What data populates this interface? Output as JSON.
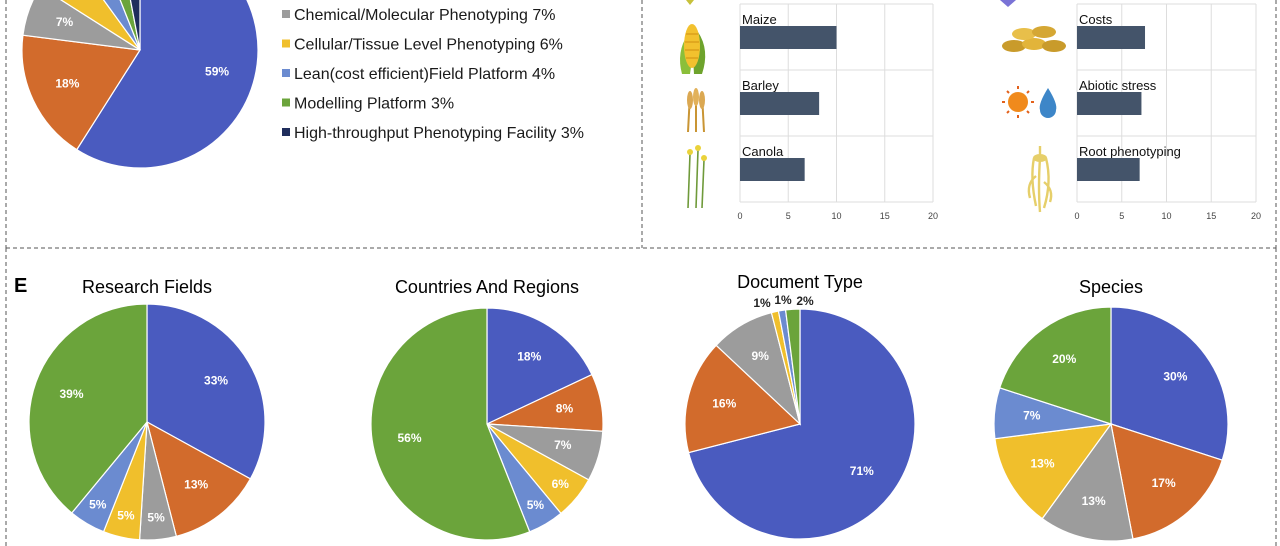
{
  "colors": {
    "blue": "#4a5bbf",
    "orange": "#d26b2c",
    "gray": "#9c9c9c",
    "yellow": "#f0bf2c",
    "lightblue": "#6b8bd0",
    "green": "#6ba43b",
    "navy": "#1f2d5c",
    "bar": "#44546a"
  },
  "panel_label": "E",
  "chart_data": [
    {
      "id": "platform_pie",
      "type": "pie",
      "title": "",
      "slices": [
        {
          "label": "59%",
          "value": 59,
          "color": "#4a5bbf"
        },
        {
          "label": "18%",
          "value": 18,
          "color": "#d26b2c"
        },
        {
          "label": "7%",
          "value": 7,
          "color": "#9c9c9c"
        },
        {
          "label": "",
          "value": 6,
          "color": "#f0bf2c"
        },
        {
          "label": "",
          "value": 4,
          "color": "#6b8bd0"
        },
        {
          "label": "",
          "value": 3,
          "color": "#6ba43b"
        },
        {
          "label": "",
          "value": 3,
          "color": "#1f2d5c"
        }
      ],
      "legend": [
        {
          "text": "Chemical/Molecular Phenotyping 7%",
          "color": "#9c9c9c"
        },
        {
          "text": "Cellular/Tissue Level Phenotyping 6%",
          "color": "#f0bf2c"
        },
        {
          "text": "Lean(cost efficient)Field Platform 4%",
          "color": "#6b8bd0"
        },
        {
          "text": "Modelling Platform 3%",
          "color": "#6ba43b"
        },
        {
          "text": "High-throughput Phenotyping Facility 3%",
          "color": "#1f2d5c"
        }
      ]
    },
    {
      "id": "crops_bar",
      "type": "bar",
      "orientation": "horizontal",
      "categories": [
        "Maize",
        "Barley",
        "Canola"
      ],
      "values": [
        10,
        8.2,
        6.7
      ],
      "icons": [
        "corn-icon",
        "wheat-icon",
        "canola-icon"
      ],
      "xlim": [
        0,
        20
      ],
      "xticks": [
        "0",
        "5",
        "10",
        "15",
        "20"
      ]
    },
    {
      "id": "topics_bar",
      "type": "bar",
      "orientation": "horizontal",
      "categories": [
        "Costs",
        "Abiotic stress",
        "Root phenotyping"
      ],
      "values": [
        7.6,
        7.2,
        7.0
      ],
      "icons": [
        "coins-icon",
        "sun-water-icon",
        "root-icon"
      ],
      "xlim": [
        0,
        20
      ],
      "xticks": [
        "0",
        "5",
        "10",
        "15",
        "20"
      ]
    },
    {
      "id": "research_fields",
      "type": "pie",
      "title": "Research Fields",
      "slices": [
        {
          "label": "33%",
          "value": 33,
          "color": "#4a5bbf"
        },
        {
          "label": "13%",
          "value": 13,
          "color": "#d26b2c"
        },
        {
          "label": "5%",
          "value": 5,
          "color": "#9c9c9c"
        },
        {
          "label": "5%",
          "value": 5,
          "color": "#f0bf2c"
        },
        {
          "label": "5%",
          "value": 5,
          "color": "#6b8bd0"
        },
        {
          "label": "39%",
          "value": 39,
          "color": "#6ba43b"
        }
      ]
    },
    {
      "id": "countries_regions",
      "type": "pie",
      "title": "Countries And Regions",
      "slices": [
        {
          "label": "18%",
          "value": 18,
          "color": "#4a5bbf"
        },
        {
          "label": "8%",
          "value": 8,
          "color": "#d26b2c"
        },
        {
          "label": "7%",
          "value": 7,
          "color": "#9c9c9c"
        },
        {
          "label": "6%",
          "value": 6,
          "color": "#f0bf2c"
        },
        {
          "label": "5%",
          "value": 5,
          "color": "#6b8bd0"
        },
        {
          "label": "56%",
          "value": 56,
          "color": "#6ba43b"
        }
      ]
    },
    {
      "id": "document_type",
      "type": "pie",
      "title": "Document Type",
      "slices": [
        {
          "label": "71%",
          "value": 71,
          "color": "#4a5bbf"
        },
        {
          "label": "16%",
          "value": 16,
          "color": "#d26b2c"
        },
        {
          "label": "9%",
          "value": 9,
          "color": "#9c9c9c"
        },
        {
          "label": "1%",
          "value": 1,
          "color": "#f0bf2c"
        },
        {
          "label": "1%",
          "value": 1,
          "color": "#6b8bd0"
        },
        {
          "label": "2%",
          "value": 2,
          "color": "#6ba43b"
        }
      ]
    },
    {
      "id": "species",
      "type": "pie",
      "title": "Species",
      "slices": [
        {
          "label": "30%",
          "value": 30,
          "color": "#4a5bbf"
        },
        {
          "label": "17%",
          "value": 17,
          "color": "#d26b2c"
        },
        {
          "label": "13%",
          "value": 13,
          "color": "#9c9c9c"
        },
        {
          "label": "13%",
          "value": 13,
          "color": "#f0bf2c"
        },
        {
          "label": "7%",
          "value": 7,
          "color": "#6b8bd0"
        },
        {
          "label": "20%",
          "value": 20,
          "color": "#6ba43b"
        }
      ]
    }
  ]
}
